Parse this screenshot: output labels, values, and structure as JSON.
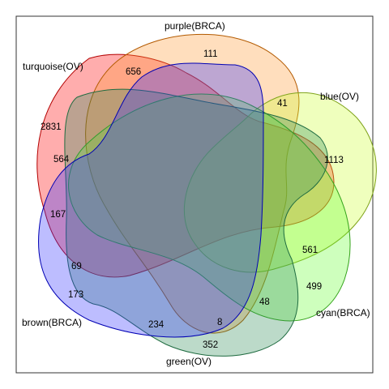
{
  "sets": [
    {
      "key": "turquoise",
      "label": "turquoise(OV)",
      "fill": "#ff0000",
      "stroke": "#b30000"
    },
    {
      "key": "purple",
      "label": "purple(BRCA)",
      "fill": "#ff9933",
      "stroke": "#b35a00"
    },
    {
      "key": "blue",
      "label": "blue(OV)",
      "fill": "#ccff33",
      "stroke": "#7fa31a"
    },
    {
      "key": "cyan",
      "label": "cyan(BRCA)",
      "fill": "#66ff33",
      "stroke": "#33a31a"
    },
    {
      "key": "green",
      "label": "green(OV)",
      "fill": "#2e8b57",
      "stroke": "#1f6b40"
    },
    {
      "key": "brown",
      "label": "brown(BRCA)",
      "fill": "#3333ff",
      "stroke": "#0000b3"
    }
  ],
  "regions": [
    {
      "id": "turquoise_only",
      "value": "2831"
    },
    {
      "id": "turquoise_purple",
      "value": "656"
    },
    {
      "id": "purple_only",
      "value": "111"
    },
    {
      "id": "purple_blue",
      "value": "41"
    },
    {
      "id": "blue_only",
      "value": "1113"
    },
    {
      "id": "turquoise_green",
      "value": "564"
    },
    {
      "id": "turquoise_brown",
      "value": "167"
    },
    {
      "id": "blue_cyan",
      "value": "561"
    },
    {
      "id": "cyan_only",
      "value": "499"
    },
    {
      "id": "brown_green",
      "value": "69"
    },
    {
      "id": "brown_only",
      "value": "173"
    },
    {
      "id": "cyan_green",
      "value": "48"
    },
    {
      "id": "brown_green_low",
      "value": "234"
    },
    {
      "id": "green_center_low",
      "value": "8"
    },
    {
      "id": "green_only",
      "value": "352"
    }
  ]
}
